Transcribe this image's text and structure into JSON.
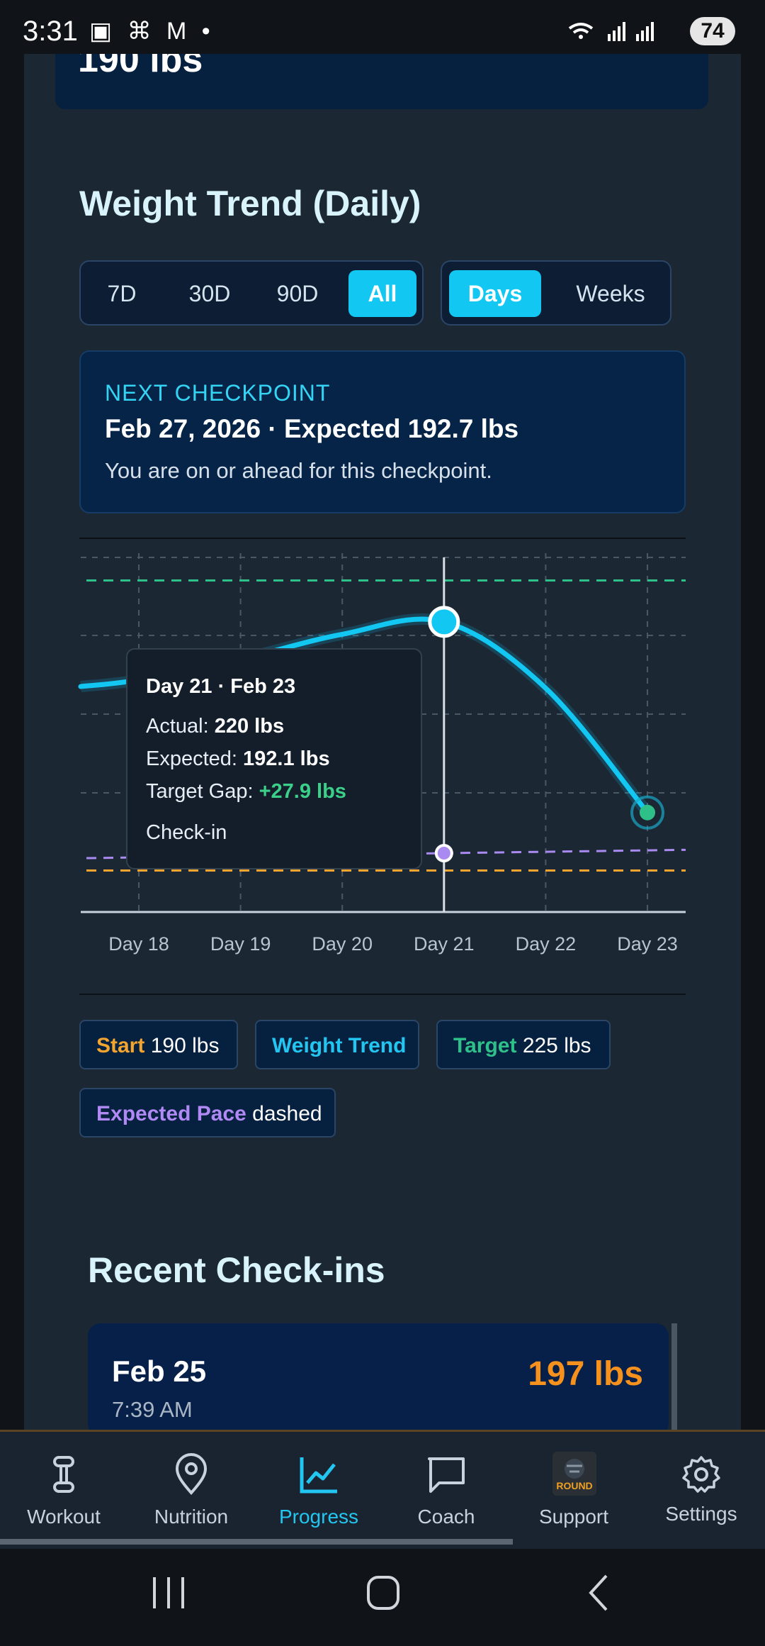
{
  "status_bar": {
    "time": "3:31",
    "left_icons": "▣ ⌘ M •",
    "battery": "74"
  },
  "top_card": {
    "value": "190 lbs"
  },
  "weight_trend": {
    "title": "Weight Trend (Daily)",
    "ranges": [
      "7D",
      "30D",
      "90D",
      "All"
    ],
    "active_range": "All",
    "units": [
      "Days",
      "Weeks"
    ],
    "active_unit": "Days"
  },
  "checkpoint": {
    "label": "NEXT CHECKPOINT",
    "title": "Feb 27, 2026 · Expected 192.7 lbs",
    "subtitle": "You are on or ahead for this checkpoint."
  },
  "chart_data": {
    "type": "line",
    "x": [
      "Day 18",
      "Day 19",
      "Day 20",
      "Day 21",
      "Day 22",
      "Day 23"
    ],
    "series": [
      {
        "name": "Weight Trend",
        "values": [
          213,
          215.5,
          218.5,
          220,
          212,
          197
        ],
        "color": "#12c8f2"
      },
      {
        "name": "Expected Pace",
        "values": [
          191.5,
          191.7,
          191.9,
          192.1,
          192.3,
          192.5
        ],
        "color": "#a98af0",
        "style": "dashed"
      },
      {
        "name": "Target",
        "values": [
          225,
          225,
          225,
          225,
          225,
          225
        ],
        "color": "#2fc08a",
        "style": "dashed"
      },
      {
        "name": "Start",
        "values": [
          190,
          190,
          190,
          190,
          190,
          190
        ],
        "color": "#f4a52f",
        "style": "dashed"
      }
    ],
    "ylim": [
      185,
      230
    ],
    "grid": true,
    "selected_index": 3
  },
  "tooltip": {
    "title": "Day 21 · Feb 23",
    "actual_label": "Actual:",
    "actual_value": "220 lbs",
    "expected_label": "Expected:",
    "expected_value": "192.1 lbs",
    "gap_label": "Target Gap:",
    "gap_value": "+27.9 lbs",
    "type": "Check-in"
  },
  "legend": {
    "start_label": "Start",
    "start_value": "190 lbs",
    "trend_label": "Weight Trend",
    "target_label": "Target",
    "target_value": "225 lbs",
    "pace_label": "Expected Pace",
    "pace_value": "dashed"
  },
  "recent": {
    "title": "Recent Check-ins",
    "items": [
      {
        "date": "Feb 25",
        "time": "7:39 AM",
        "weight": "197 lbs"
      }
    ]
  },
  "nav": {
    "items": [
      {
        "label": "Workout",
        "icon": "dumbbell-icon"
      },
      {
        "label": "Nutrition",
        "icon": "location-pin-icon"
      },
      {
        "label": "Progress",
        "icon": "chart-line-icon"
      },
      {
        "label": "Coach",
        "icon": "chat-bubble-icon"
      },
      {
        "label": "Support",
        "icon": "support-image",
        "image_text": "ROUND"
      },
      {
        "label": "Settings",
        "icon": "gear-icon"
      }
    ],
    "active": "Progress",
    "scroll_position": 0.67
  },
  "colors": {
    "accent": "#12c8f2",
    "background": "#1c2734",
    "weight_orange": "#f7911e"
  }
}
